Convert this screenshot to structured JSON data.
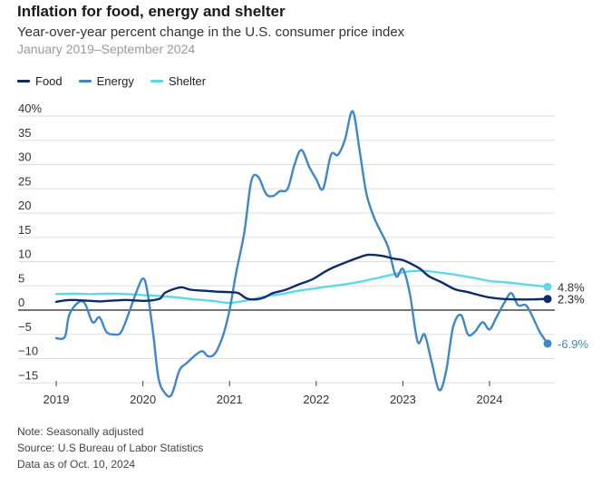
{
  "title": "Inflation for food, energy and shelter",
  "subtitle": "Year-over-year percent change in the U.S. consumer price index",
  "date_range": "January 2019–September 2024",
  "footer": {
    "note": "Note: Seasonally adjusted",
    "source": "Source: U.S Bureau of Labor Statistics",
    "data_as_of": "Data as of Oct. 10, 2024"
  },
  "colors": {
    "food": "#0d2b6b",
    "energy": "#3e87c8",
    "shelter": "#5ed8e8",
    "grid": "#dddddd",
    "zero": "#222222"
  },
  "chart_data": {
    "type": "line",
    "title": "Inflation for food, energy and shelter",
    "subtitle": "Year-over-year percent change in the U.S. consumer price index",
    "xlabel": "",
    "ylabel": "",
    "xlim": [
      2019.0,
      2024.75
    ],
    "ylim": [
      -17,
      42
    ],
    "y_ticks": [
      {
        "value": 40,
        "label": "40%"
      },
      {
        "value": 35,
        "label": "35"
      },
      {
        "value": 30,
        "label": "30"
      },
      {
        "value": 25,
        "label": "25"
      },
      {
        "value": 20,
        "label": "20"
      },
      {
        "value": 15,
        "label": "15"
      },
      {
        "value": 10,
        "label": "10"
      },
      {
        "value": 5,
        "label": "5"
      },
      {
        "value": 0,
        "label": "0"
      },
      {
        "value": -5,
        "label": "−5"
      },
      {
        "value": -10,
        "label": "−10"
      },
      {
        "value": -15,
        "label": "−15"
      }
    ],
    "x_ticks": [
      {
        "value": 2019,
        "label": "2019"
      },
      {
        "value": 2020,
        "label": "2020"
      },
      {
        "value": 2021,
        "label": "2021"
      },
      {
        "value": 2022,
        "label": "2022"
      },
      {
        "value": 2023,
        "label": "2023"
      },
      {
        "value": 2024,
        "label": "2024"
      }
    ],
    "grid": "horizontal",
    "legend_position": "top-left",
    "series": [
      {
        "name": "Food",
        "color_key": "food",
        "end_label": "2.3%",
        "points": [
          [
            2019.0,
            1.7
          ],
          [
            2019.1,
            2.0
          ],
          [
            2019.2,
            2.1
          ],
          [
            2019.3,
            2.0
          ],
          [
            2019.4,
            1.9
          ],
          [
            2019.5,
            1.8
          ],
          [
            2019.6,
            1.9
          ],
          [
            2019.7,
            2.0
          ],
          [
            2019.8,
            2.1
          ],
          [
            2019.9,
            2.0
          ],
          [
            2020.0,
            1.9
          ],
          [
            2020.1,
            2.0
          ],
          [
            2020.2,
            2.4
          ],
          [
            2020.25,
            3.5
          ],
          [
            2020.35,
            4.3
          ],
          [
            2020.45,
            4.7
          ],
          [
            2020.55,
            4.2
          ],
          [
            2020.7,
            4.0
          ],
          [
            2020.85,
            3.8
          ],
          [
            2021.0,
            3.7
          ],
          [
            2021.1,
            3.5
          ],
          [
            2021.2,
            2.4
          ],
          [
            2021.3,
            2.2
          ],
          [
            2021.4,
            2.6
          ],
          [
            2021.5,
            3.5
          ],
          [
            2021.65,
            4.2
          ],
          [
            2021.8,
            5.3
          ],
          [
            2021.95,
            6.3
          ],
          [
            2022.1,
            7.9
          ],
          [
            2022.2,
            8.8
          ],
          [
            2022.35,
            9.9
          ],
          [
            2022.5,
            10.9
          ],
          [
            2022.6,
            11.4
          ],
          [
            2022.75,
            11.2
          ],
          [
            2022.9,
            10.6
          ],
          [
            2023.0,
            10.3
          ],
          [
            2023.1,
            9.5
          ],
          [
            2023.2,
            8.5
          ],
          [
            2023.3,
            7.0
          ],
          [
            2023.45,
            5.7
          ],
          [
            2023.6,
            4.3
          ],
          [
            2023.75,
            3.7
          ],
          [
            2023.9,
            3.0
          ],
          [
            2024.0,
            2.6
          ],
          [
            2024.15,
            2.3
          ],
          [
            2024.3,
            2.2
          ],
          [
            2024.5,
            2.2
          ],
          [
            2024.67,
            2.3
          ]
        ]
      },
      {
        "name": "Energy",
        "color_key": "energy",
        "end_label": "-6.9%",
        "points": [
          [
            2019.0,
            -5.8
          ],
          [
            2019.1,
            -5.5
          ],
          [
            2019.15,
            -1.0
          ],
          [
            2019.25,
            1.5
          ],
          [
            2019.33,
            1.4
          ],
          [
            2019.42,
            -2.5
          ],
          [
            2019.5,
            -1.5
          ],
          [
            2019.58,
            -4.5
          ],
          [
            2019.67,
            -5.0
          ],
          [
            2019.75,
            -4.5
          ],
          [
            2019.85,
            0.0
          ],
          [
            2019.92,
            3.5
          ],
          [
            2020.0,
            6.5
          ],
          [
            2020.05,
            4.0
          ],
          [
            2020.12,
            -5.0
          ],
          [
            2020.18,
            -14.0
          ],
          [
            2020.25,
            -17.0
          ],
          [
            2020.33,
            -17.5
          ],
          [
            2020.42,
            -12.5
          ],
          [
            2020.5,
            -11.0
          ],
          [
            2020.67,
            -8.5
          ],
          [
            2020.75,
            -9.5
          ],
          [
            2020.83,
            -9.0
          ],
          [
            2020.92,
            -5.5
          ],
          [
            2021.0,
            0.0
          ],
          [
            2021.08,
            8.0
          ],
          [
            2021.17,
            16.0
          ],
          [
            2021.25,
            26.5
          ],
          [
            2021.33,
            27.5
          ],
          [
            2021.42,
            24.0
          ],
          [
            2021.5,
            23.5
          ],
          [
            2021.58,
            24.5
          ],
          [
            2021.67,
            25.0
          ],
          [
            2021.75,
            30.0
          ],
          [
            2021.83,
            33.0
          ],
          [
            2021.92,
            29.5
          ],
          [
            2022.0,
            27.0
          ],
          [
            2022.08,
            25.0
          ],
          [
            2022.17,
            32.0
          ],
          [
            2022.25,
            32.0
          ],
          [
            2022.33,
            35.0
          ],
          [
            2022.42,
            41.0
          ],
          [
            2022.5,
            33.0
          ],
          [
            2022.58,
            24.0
          ],
          [
            2022.67,
            19.0
          ],
          [
            2022.75,
            16.0
          ],
          [
            2022.83,
            13.0
          ],
          [
            2022.92,
            7.0
          ],
          [
            2023.0,
            8.5
          ],
          [
            2023.08,
            3.5
          ],
          [
            2023.17,
            -6.5
          ],
          [
            2023.25,
            -5.0
          ],
          [
            2023.33,
            -10.5
          ],
          [
            2023.42,
            -16.5
          ],
          [
            2023.5,
            -12.5
          ],
          [
            2023.58,
            -3.5
          ],
          [
            2023.67,
            -1.0
          ],
          [
            2023.75,
            -5.0
          ],
          [
            2023.83,
            -4.5
          ],
          [
            2023.92,
            -2.5
          ],
          [
            2024.0,
            -4.0
          ],
          [
            2024.08,
            -1.5
          ],
          [
            2024.17,
            1.5
          ],
          [
            2024.25,
            3.5
          ],
          [
            2024.33,
            1.0
          ],
          [
            2024.42,
            1.0
          ],
          [
            2024.5,
            -1.5
          ],
          [
            2024.58,
            -4.5
          ],
          [
            2024.67,
            -6.9
          ]
        ]
      },
      {
        "name": "Shelter",
        "color_key": "shelter",
        "end_label": "4.8%",
        "points": [
          [
            2019.0,
            3.3
          ],
          [
            2019.2,
            3.4
          ],
          [
            2019.4,
            3.3
          ],
          [
            2019.6,
            3.4
          ],
          [
            2019.8,
            3.3
          ],
          [
            2020.0,
            3.1
          ],
          [
            2020.2,
            2.9
          ],
          [
            2020.4,
            2.6
          ],
          [
            2020.6,
            2.2
          ],
          [
            2020.8,
            1.9
          ],
          [
            2021.0,
            1.5
          ],
          [
            2021.2,
            2.0
          ],
          [
            2021.4,
            2.8
          ],
          [
            2021.6,
            3.3
          ],
          [
            2021.8,
            4.0
          ],
          [
            2022.0,
            4.5
          ],
          [
            2022.2,
            5.0
          ],
          [
            2022.4,
            5.5
          ],
          [
            2022.6,
            6.2
          ],
          [
            2022.8,
            7.0
          ],
          [
            2023.0,
            7.8
          ],
          [
            2023.2,
            8.1
          ],
          [
            2023.4,
            7.8
          ],
          [
            2023.6,
            7.3
          ],
          [
            2023.8,
            6.7
          ],
          [
            2024.0,
            6.0
          ],
          [
            2024.2,
            5.7
          ],
          [
            2024.4,
            5.3
          ],
          [
            2024.67,
            4.8
          ]
        ]
      }
    ]
  }
}
